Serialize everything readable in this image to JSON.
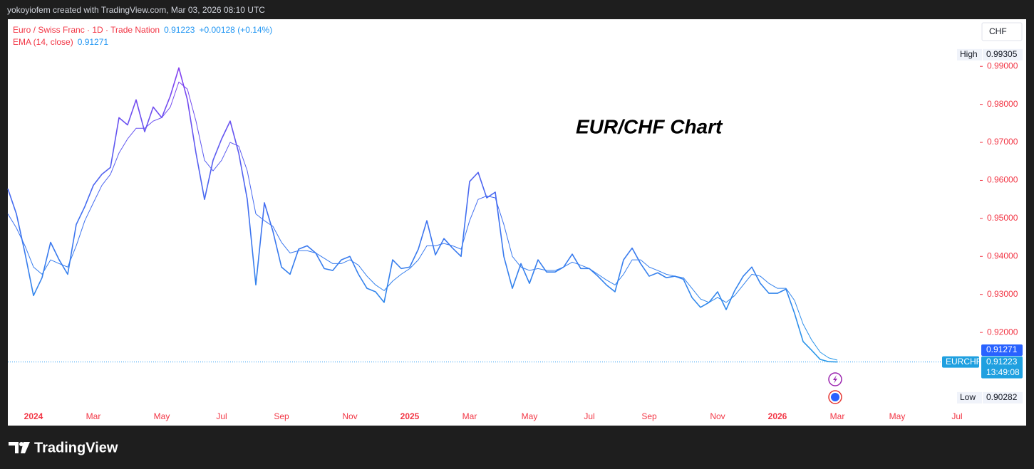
{
  "header": "yokoyiofem created with TradingView.com, Mar 03, 2026 08:10 UTC",
  "footer_brand": "TradingView",
  "chart_data": {
    "type": "line",
    "annotation": "EUR/CHF Chart",
    "currency": "CHF",
    "symbol": "EURCHF",
    "change": "+0.00128 (+0.14%)",
    "countdown": "13:49:08",
    "high": {
      "label": "High",
      "value": 0.99305
    },
    "low": {
      "label": "Low",
      "value": 0.90282
    },
    "line_gradient": [
      "#9b30f0",
      "#3f6ff0",
      "#1fa6e6"
    ],
    "grid": false,
    "ylim": [
      0.8998,
      1.0024
    ],
    "yticks": [
      {
        "value": 0.92,
        "label": "0.92000"
      },
      {
        "value": 0.93,
        "label": "0.93000"
      },
      {
        "value": 0.94,
        "label": "0.94000"
      },
      {
        "value": 0.95,
        "label": "0.95000"
      },
      {
        "value": 0.96,
        "label": "0.96000"
      },
      {
        "value": 0.97,
        "label": "0.97000"
      },
      {
        "value": 0.98,
        "label": "0.98000"
      },
      {
        "value": 0.99,
        "label": "0.99000"
      }
    ],
    "categories": [
      null,
      null,
      null,
      "2024",
      null,
      null,
      null,
      null,
      null,
      null,
      "Mar",
      null,
      null,
      null,
      null,
      null,
      null,
      null,
      "May",
      null,
      null,
      null,
      null,
      null,
      null,
      "Jul",
      null,
      null,
      null,
      null,
      null,
      null,
      "Sep",
      null,
      null,
      null,
      null,
      null,
      null,
      null,
      "Nov",
      null,
      null,
      null,
      null,
      null,
      null,
      "2025",
      null,
      null,
      null,
      null,
      null,
      null,
      "Mar",
      null,
      null,
      null,
      null,
      null,
      null,
      "May",
      null,
      null,
      null,
      null,
      null,
      null,
      "Jul",
      null,
      null,
      null,
      null,
      null,
      null,
      "Sep",
      null,
      null,
      null,
      null,
      null,
      null,
      null,
      "Nov",
      null,
      null,
      null,
      null,
      null,
      null,
      "2026",
      null,
      null,
      null,
      null,
      null,
      null,
      "Mar",
      null,
      null,
      null,
      null,
      null,
      null,
      "May",
      null,
      null,
      null,
      null,
      null,
      null,
      "Jul",
      null,
      null
    ],
    "series": [
      {
        "name": "Euro / Swiss Franc · 1D · Trade Nation",
        "width": 1.6,
        "values": [
          0.9578,
          0.9512,
          0.9409,
          0.9297,
          0.9344,
          0.9437,
          0.9391,
          0.9353,
          0.9484,
          0.9531,
          0.9587,
          0.9616,
          0.9634,
          0.9765,
          0.9746,
          0.9812,
          0.9728,
          0.9793,
          0.9765,
          0.9822,
          0.9896,
          0.9812,
          0.9672,
          0.955,
          0.9653,
          0.9709,
          0.9756,
          0.9672,
          0.955,
          0.9325,
          0.9541,
          0.9466,
          0.9372,
          0.9353,
          0.9419,
          0.9428,
          0.9409,
          0.9368,
          0.9363,
          0.9391,
          0.94,
          0.9353,
          0.9316,
          0.9307,
          0.9279,
          0.9391,
          0.9368,
          0.9372,
          0.9419,
          0.9494,
          0.9404,
          0.9447,
          0.9422,
          0.94,
          0.9597,
          0.9621,
          0.9554,
          0.9569,
          0.94,
          0.9316,
          0.9381,
          0.9329,
          0.9391,
          0.9359,
          0.9359,
          0.9372,
          0.9406,
          0.9368,
          0.9368,
          0.9348,
          0.9325,
          0.9307,
          0.9391,
          0.9422,
          0.9381,
          0.9348,
          0.9357,
          0.9344,
          0.9348,
          0.934,
          0.9292,
          0.9266,
          0.9279,
          0.9307,
          0.926,
          0.931,
          0.9348,
          0.9372,
          0.9329,
          0.9303,
          0.9303,
          0.9314,
          0.925,
          0.9176,
          0.9153,
          0.9129,
          0.9123,
          0.91223,
          null,
          null,
          null,
          null,
          null,
          null,
          null,
          null,
          null,
          null,
          null,
          null,
          null,
          null,
          null,
          null
        ]
      },
      {
        "name": "EMA (14, close)",
        "width": 1,
        "values": [
          0.9512,
          0.9475,
          0.9428,
          0.9372,
          0.9353,
          0.9391,
          0.9381,
          0.9372,
          0.9428,
          0.9494,
          0.9541,
          0.9587,
          0.9616,
          0.9672,
          0.9709,
          0.9737,
          0.9737,
          0.9756,
          0.9765,
          0.9793,
          0.9859,
          0.984,
          0.9756,
          0.9653,
          0.9625,
          0.9653,
          0.97,
          0.969,
          0.9625,
          0.9512,
          0.9494,
          0.9479,
          0.9437,
          0.9409,
          0.9415,
          0.9415,
          0.9409,
          0.9395,
          0.9381,
          0.9381,
          0.9391,
          0.9377,
          0.9348,
          0.9325,
          0.931,
          0.9335,
          0.9353,
          0.9368,
          0.9391,
          0.9428,
          0.9428,
          0.9434,
          0.9428,
          0.9419,
          0.9494,
          0.955,
          0.9559,
          0.9554,
          0.9484,
          0.94,
          0.9372,
          0.9363,
          0.9368,
          0.9363,
          0.9363,
          0.9372,
          0.9385,
          0.9377,
          0.9368,
          0.9353,
          0.9338,
          0.9325,
          0.9353,
          0.9391,
          0.9391,
          0.9372,
          0.9363,
          0.9353,
          0.9348,
          0.9344,
          0.9316,
          0.9288,
          0.9279,
          0.9292,
          0.9279,
          0.9297,
          0.9325,
          0.9353,
          0.9348,
          0.9329,
          0.9316,
          0.9316,
          0.9284,
          0.9222,
          0.918,
          0.9148,
          0.9133,
          0.91271,
          null,
          null,
          null,
          null,
          null,
          null,
          null,
          null,
          null,
          null,
          null,
          null,
          null,
          null,
          null,
          null
        ]
      }
    ]
  }
}
